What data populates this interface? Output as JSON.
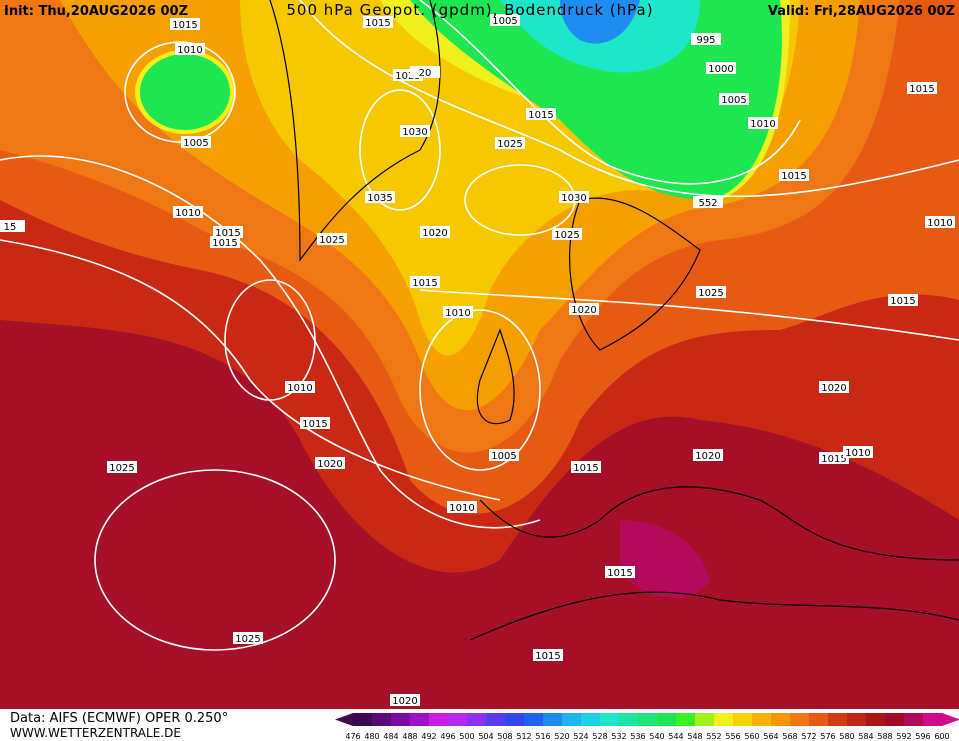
{
  "header": {
    "init": "Init: Thu,20AUG2026 00Z",
    "title": "500 hPa Geopot. (gpdm), Bodendruck (hPa)",
    "valid": "Valid: Fri,28AUG2026 00Z"
  },
  "footer": {
    "source": "Data: AIFS (ECMWF) OPER 0.250°",
    "site": "WWW.WETTERZENTRALE.DE"
  },
  "isobar_labels": [
    "1015",
    "1010",
    "1005",
    "1010",
    "1015",
    "1015",
    "15",
    "1015",
    "1005",
    "1025",
    "20",
    "1030",
    "1035",
    "1025",
    "1020",
    "1015",
    "1010",
    "1015",
    "1025",
    "1030",
    "1025",
    "1020",
    "995",
    "1000",
    "1005",
    "1010",
    "552",
    "1015",
    "1015",
    "1010",
    "1025",
    "1015",
    "1010",
    "1015",
    "1020",
    "1025",
    "1005",
    "1015",
    "1010",
    "1020",
    "1020",
    "1015",
    "1010",
    "1015",
    "1015",
    "1025",
    "1020"
  ],
  "legend": {
    "labels": [
      476,
      480,
      484,
      488,
      492,
      496,
      500,
      504,
      508,
      512,
      516,
      520,
      524,
      528,
      532,
      536,
      540,
      544,
      548,
      552,
      556,
      560,
      564,
      568,
      572,
      576,
      580,
      584,
      588,
      592,
      596,
      600
    ],
    "colors": [
      "#3c0a50",
      "#5a0a78",
      "#7a0aa0",
      "#a010c8",
      "#c81ee6",
      "#b428f0",
      "#8c32f0",
      "#5a3cf0",
      "#3246f0",
      "#1e64f0",
      "#1e8cf0",
      "#1eb4f0",
      "#1ed2e6",
      "#1ee6c8",
      "#1ee6a0",
      "#1ee678",
      "#1ee650",
      "#3cf028",
      "#a0f01e",
      "#f0f01e",
      "#f5d200",
      "#f5b400",
      "#f59600",
      "#f07814",
      "#e65a14",
      "#d23c14",
      "#be2814",
      "#aa1414",
      "#a00a28",
      "#b40a5a",
      "#d20a8c"
    ]
  }
}
